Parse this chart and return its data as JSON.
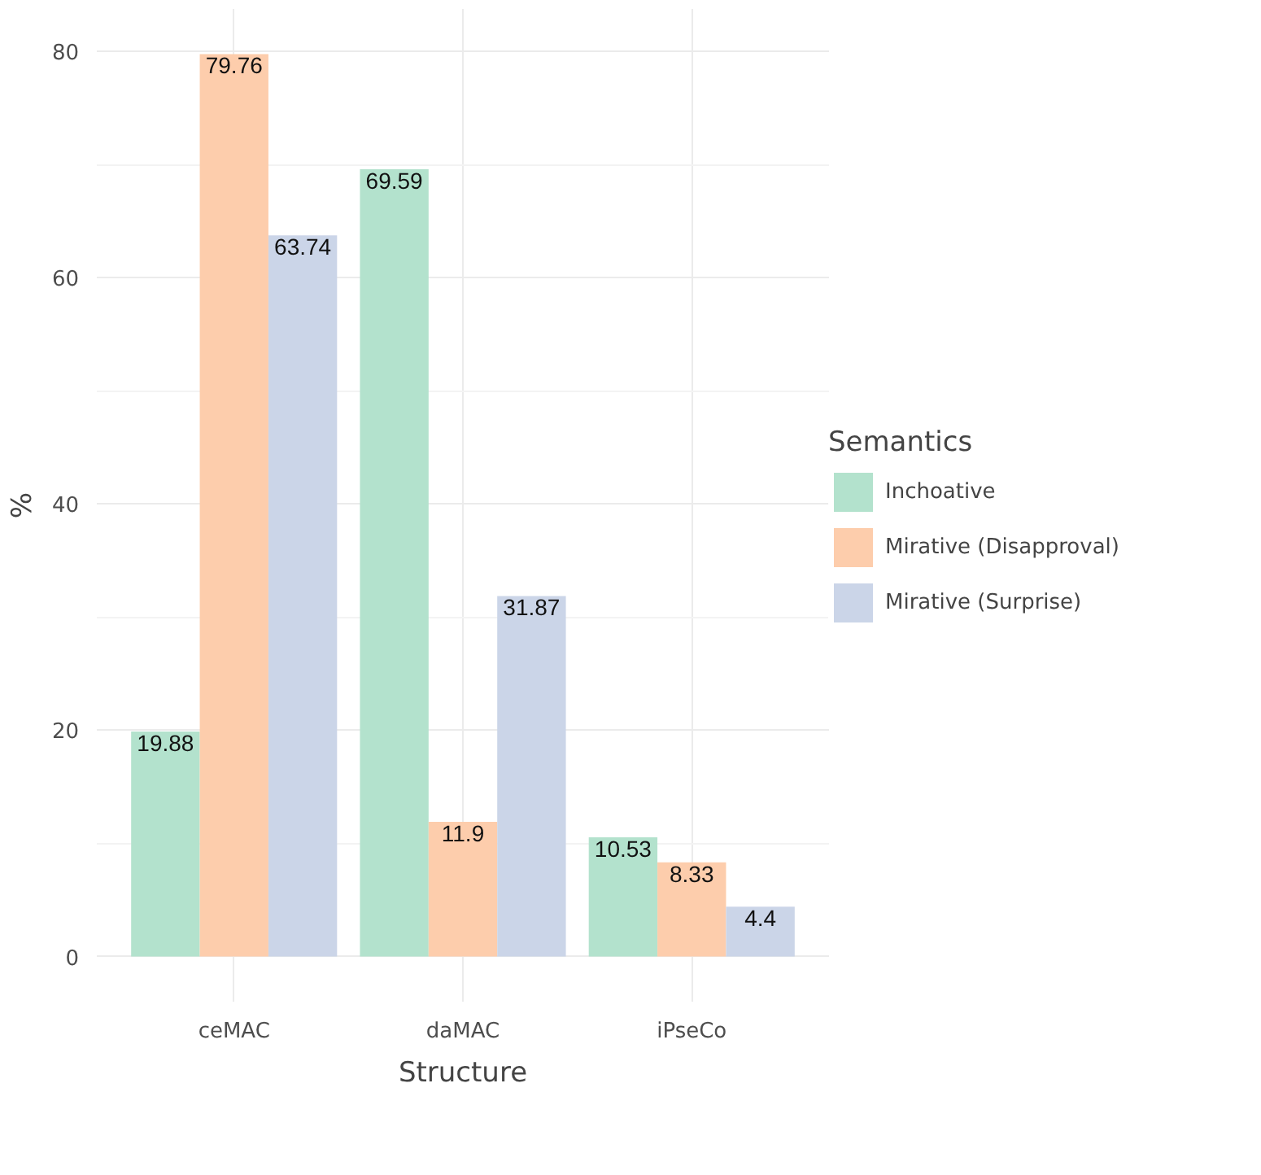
{
  "chart_data": {
    "type": "bar",
    "xlabel": "Structure",
    "ylabel": "%",
    "legend_title": "Semantics",
    "categories": [
      "ceMAC",
      "daMAC",
      "iPseCo"
    ],
    "series": [
      {
        "name": "Inchoative",
        "color": "#b3e2cd",
        "values": [
          19.88,
          69.59,
          10.53
        ]
      },
      {
        "name": "Mirative (Disapproval)",
        "color": "#fdcdac",
        "values": [
          79.76,
          11.9,
          8.33
        ]
      },
      {
        "name": "Mirative (Surprise)",
        "color": "#cbd5e8",
        "values": [
          63.74,
          31.87,
          4.4
        ]
      }
    ],
    "ylim": [
      -3.99,
      83.75
    ],
    "yticks": [
      0,
      20,
      40,
      60,
      80
    ],
    "grid": true,
    "legend": "right",
    "data_labels": true
  }
}
